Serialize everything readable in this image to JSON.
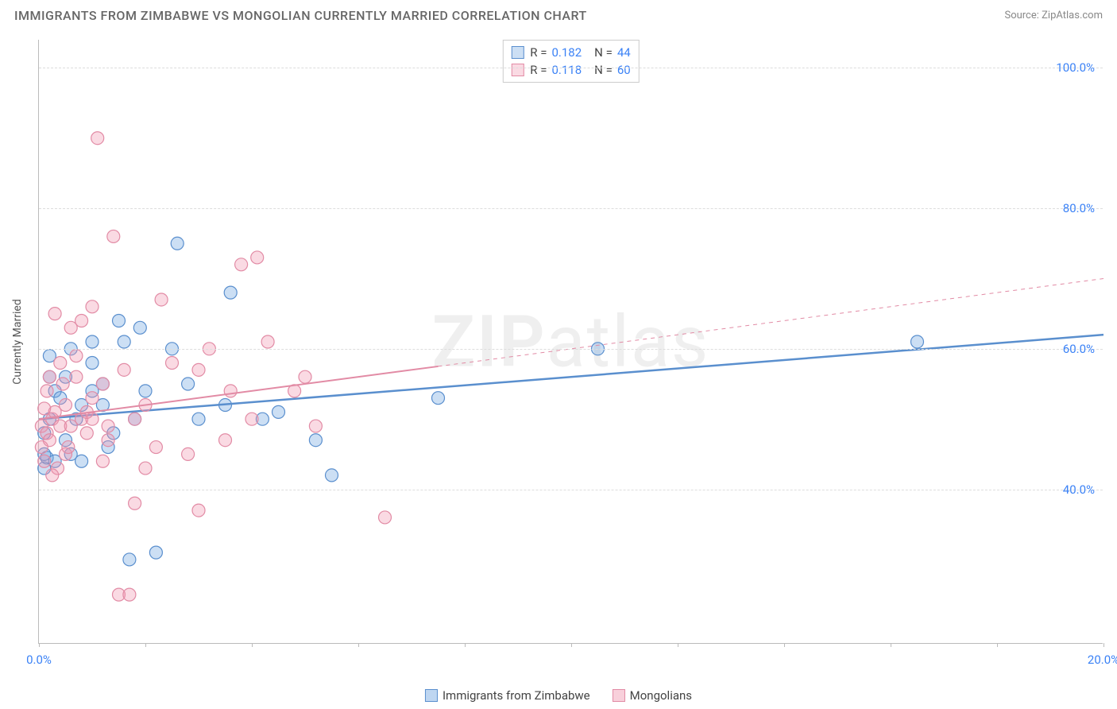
{
  "title": "IMMIGRANTS FROM ZIMBABWE VS MONGOLIAN CURRENTLY MARRIED CORRELATION CHART",
  "source": "Source: ZipAtlas.com",
  "ylabel": "Currently Married",
  "watermark_bold": "ZIP",
  "watermark_rest": "atlas",
  "chart": {
    "type": "scatter",
    "xlim": [
      0,
      20
    ],
    "ylim": [
      18,
      104
    ],
    "background_color": "#ffffff",
    "grid_color": "#dddddd",
    "axis_color": "#bbbbbb",
    "tick_color": "#3b82f6",
    "yticks": [
      40,
      60,
      80,
      100
    ],
    "ytick_labels": [
      "40.0%",
      "60.0%",
      "80.0%",
      "100.0%"
    ],
    "xticks": [
      0,
      2,
      4,
      6,
      8,
      10,
      12,
      14,
      16,
      18,
      20
    ],
    "xtick_labels": {
      "0": "0.0%",
      "20": "20.0%"
    },
    "marker_radius": 8,
    "marker_stroke_width": 1.2,
    "marker_fill_opacity": 0.35,
    "series": [
      {
        "name": "Immigrants from Zimbabwe",
        "color_stroke": "#5a8fce",
        "color_fill": "#6ea3e0",
        "R": "0.182",
        "N": "44",
        "trend": {
          "x1": 0,
          "y1": 50,
          "x2": 20,
          "y2": 62,
          "width": 2.5,
          "dashed_from_x": null
        },
        "points": [
          [
            0.1,
            45
          ],
          [
            0.1,
            48
          ],
          [
            0.1,
            43
          ],
          [
            0.2,
            50
          ],
          [
            0.2,
            56
          ],
          [
            0.2,
            59
          ],
          [
            0.3,
            54
          ],
          [
            0.4,
            53
          ],
          [
            0.5,
            47
          ],
          [
            0.5,
            56
          ],
          [
            0.6,
            60
          ],
          [
            0.7,
            50
          ],
          [
            0.8,
            44
          ],
          [
            1.0,
            54
          ],
          [
            1.0,
            61
          ],
          [
            1.0,
            58
          ],
          [
            1.2,
            55
          ],
          [
            1.2,
            52
          ],
          [
            1.3,
            46
          ],
          [
            1.5,
            64
          ],
          [
            1.6,
            61
          ],
          [
            1.7,
            30
          ],
          [
            1.8,
            50
          ],
          [
            1.9,
            63
          ],
          [
            2.2,
            31
          ],
          [
            2.5,
            60
          ],
          [
            2.6,
            75
          ],
          [
            2.8,
            55
          ],
          [
            3.0,
            50
          ],
          [
            3.5,
            52
          ],
          [
            3.6,
            68
          ],
          [
            4.2,
            50
          ],
          [
            4.5,
            51
          ],
          [
            5.2,
            47
          ],
          [
            5.5,
            42
          ],
          [
            7.5,
            53
          ],
          [
            10.5,
            60
          ],
          [
            16.5,
            61
          ],
          [
            0.15,
            44.5
          ],
          [
            0.3,
            44
          ],
          [
            0.6,
            45
          ],
          [
            0.8,
            52
          ],
          [
            1.4,
            48
          ],
          [
            2.0,
            54
          ]
        ]
      },
      {
        "name": "Mongolians",
        "color_stroke": "#e28ba5",
        "color_fill": "#f096af",
        "R": "0.118",
        "N": "60",
        "trend": {
          "x1": 0,
          "y1": 50,
          "x2": 20,
          "y2": 70,
          "width": 2,
          "dashed_from_x": 7.5
        },
        "points": [
          [
            0.05,
            46
          ],
          [
            0.05,
            49
          ],
          [
            0.1,
            51.5
          ],
          [
            0.1,
            44
          ],
          [
            0.15,
            48
          ],
          [
            0.15,
            54
          ],
          [
            0.2,
            56
          ],
          [
            0.2,
            47
          ],
          [
            0.25,
            50
          ],
          [
            0.3,
            65
          ],
          [
            0.3,
            51
          ],
          [
            0.35,
            43
          ],
          [
            0.4,
            58
          ],
          [
            0.4,
            49
          ],
          [
            0.45,
            55
          ],
          [
            0.5,
            52
          ],
          [
            0.5,
            45
          ],
          [
            0.6,
            63
          ],
          [
            0.6,
            49
          ],
          [
            0.7,
            56
          ],
          [
            0.7,
            59
          ],
          [
            0.8,
            64
          ],
          [
            0.8,
            50
          ],
          [
            0.9,
            48
          ],
          [
            1.0,
            66
          ],
          [
            1.0,
            53
          ],
          [
            1.0,
            50
          ],
          [
            1.1,
            90
          ],
          [
            1.2,
            44
          ],
          [
            1.2,
            55
          ],
          [
            1.3,
            47
          ],
          [
            1.4,
            76
          ],
          [
            1.5,
            25
          ],
          [
            1.6,
            57
          ],
          [
            1.7,
            25
          ],
          [
            1.8,
            38
          ],
          [
            1.8,
            50
          ],
          [
            2.0,
            43
          ],
          [
            2.0,
            52
          ],
          [
            2.2,
            46
          ],
          [
            2.3,
            67
          ],
          [
            2.5,
            58
          ],
          [
            2.8,
            45
          ],
          [
            3.0,
            57
          ],
          [
            3.0,
            37
          ],
          [
            3.2,
            60
          ],
          [
            3.5,
            47
          ],
          [
            3.6,
            54
          ],
          [
            3.8,
            72
          ],
          [
            4.0,
            50
          ],
          [
            4.1,
            73
          ],
          [
            4.3,
            61
          ],
          [
            4.8,
            54
          ],
          [
            5.0,
            56
          ],
          [
            5.2,
            49
          ],
          [
            6.5,
            36
          ],
          [
            0.25,
            42
          ],
          [
            0.55,
            46
          ],
          [
            0.9,
            51
          ],
          [
            1.3,
            49
          ]
        ]
      }
    ]
  },
  "bottom_legend": [
    {
      "swatch": "blue",
      "label": "Immigrants from Zimbabwe"
    },
    {
      "swatch": "pink",
      "label": "Mongolians"
    }
  ]
}
